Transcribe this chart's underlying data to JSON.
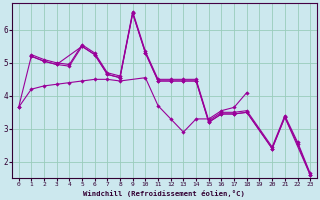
{
  "xlabel": "Windchill (Refroidissement éolien,°C)",
  "bg_color": "#cce8ee",
  "line_color": "#990099",
  "grid_color": "#99ccbb",
  "axis_label_color": "#330033",
  "xlim": [
    -0.5,
    23.5
  ],
  "ylim": [
    1.5,
    6.8
  ],
  "xticks": [
    0,
    1,
    2,
    3,
    4,
    5,
    6,
    7,
    8,
    9,
    10,
    11,
    12,
    13,
    14,
    15,
    16,
    17,
    18,
    19,
    20,
    21,
    22,
    23
  ],
  "yticks": [
    2,
    3,
    4,
    5,
    6
  ],
  "lines": [
    {
      "x": [
        0,
        1,
        2,
        3,
        4,
        5,
        6,
        7,
        8,
        10,
        11,
        12,
        13,
        14,
        15,
        16,
        17,
        18
      ],
      "y": [
        3.65,
        4.2,
        4.3,
        4.35,
        4.4,
        4.45,
        4.5,
        4.5,
        4.45,
        4.55,
        3.7,
        3.3,
        2.9,
        3.3,
        3.3,
        3.55,
        3.65,
        4.1
      ]
    },
    {
      "x": [
        1,
        2,
        3,
        4,
        5,
        6,
        7,
        8,
        9,
        10,
        11,
        12,
        13,
        14,
        15,
        16,
        17,
        18,
        20,
        21,
        22,
        23
      ],
      "y": [
        5.25,
        5.1,
        5.0,
        4.95,
        5.55,
        5.3,
        4.7,
        4.6,
        6.55,
        5.35,
        4.5,
        4.5,
        4.5,
        4.5,
        3.25,
        3.5,
        3.5,
        3.55,
        2.45,
        3.4,
        2.6,
        1.65
      ]
    },
    {
      "x": [
        1,
        2,
        3,
        5,
        6,
        7,
        8,
        9,
        10,
        11,
        12,
        13,
        14,
        15,
        16,
        17,
        18,
        20,
        21,
        22,
        23
      ],
      "y": [
        5.2,
        5.05,
        4.95,
        5.5,
        5.25,
        4.65,
        4.55,
        6.5,
        5.3,
        4.45,
        4.45,
        4.45,
        4.45,
        3.2,
        3.45,
        3.45,
        3.5,
        2.4,
        3.35,
        2.55,
        1.6
      ]
    },
    {
      "x": [
        0,
        1,
        2,
        3,
        4,
        5,
        6,
        7,
        8,
        9,
        10,
        11,
        12,
        13,
        14,
        15,
        16,
        17,
        18,
        20,
        21,
        23
      ],
      "y": [
        3.65,
        5.2,
        5.05,
        4.95,
        4.9,
        5.5,
        5.25,
        4.65,
        4.55,
        6.5,
        5.3,
        4.45,
        4.45,
        4.45,
        4.45,
        3.2,
        3.45,
        3.45,
        3.5,
        2.4,
        3.35,
        1.6
      ]
    }
  ]
}
